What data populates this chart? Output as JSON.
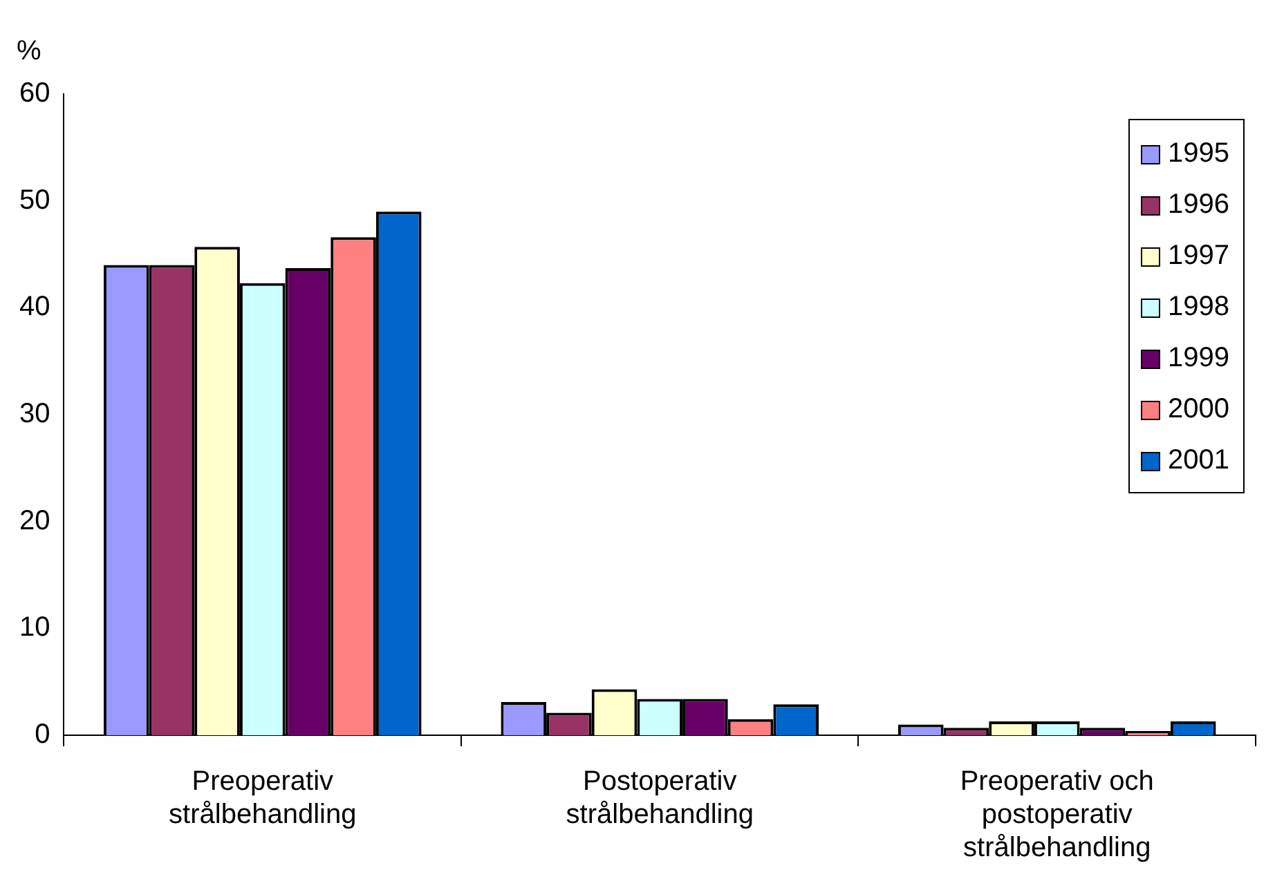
{
  "chart_data": {
    "type": "bar",
    "ylabel": "%",
    "categories": [
      "Preoperativ strålbehandling",
      "Postoperativ strålbehandling",
      "Preoperativ och postoperativ strålbehandling"
    ],
    "series": [
      {
        "name": "1995",
        "color": "#9999ff",
        "values": [
          44.0,
          3.1,
          1.0
        ]
      },
      {
        "name": "1996",
        "color": "#993366",
        "values": [
          44.0,
          2.1,
          0.7
        ]
      },
      {
        "name": "1997",
        "color": "#ffffcc",
        "values": [
          45.7,
          4.3,
          1.3
        ]
      },
      {
        "name": "1998",
        "color": "#ccffff",
        "values": [
          42.3,
          3.4,
          1.3
        ]
      },
      {
        "name": "1999",
        "color": "#660066",
        "values": [
          43.7,
          3.4,
          0.7
        ]
      },
      {
        "name": "2000",
        "color": "#ff8080",
        "values": [
          46.6,
          1.5,
          0.4
        ]
      },
      {
        "name": "2001",
        "color": "#0066cc",
        "values": [
          49.0,
          2.9,
          1.3
        ]
      }
    ],
    "ylim": [
      0,
      60
    ],
    "yticks": [
      0,
      10,
      20,
      30,
      40,
      50,
      60
    ],
    "grid": false,
    "legend": "top right"
  }
}
